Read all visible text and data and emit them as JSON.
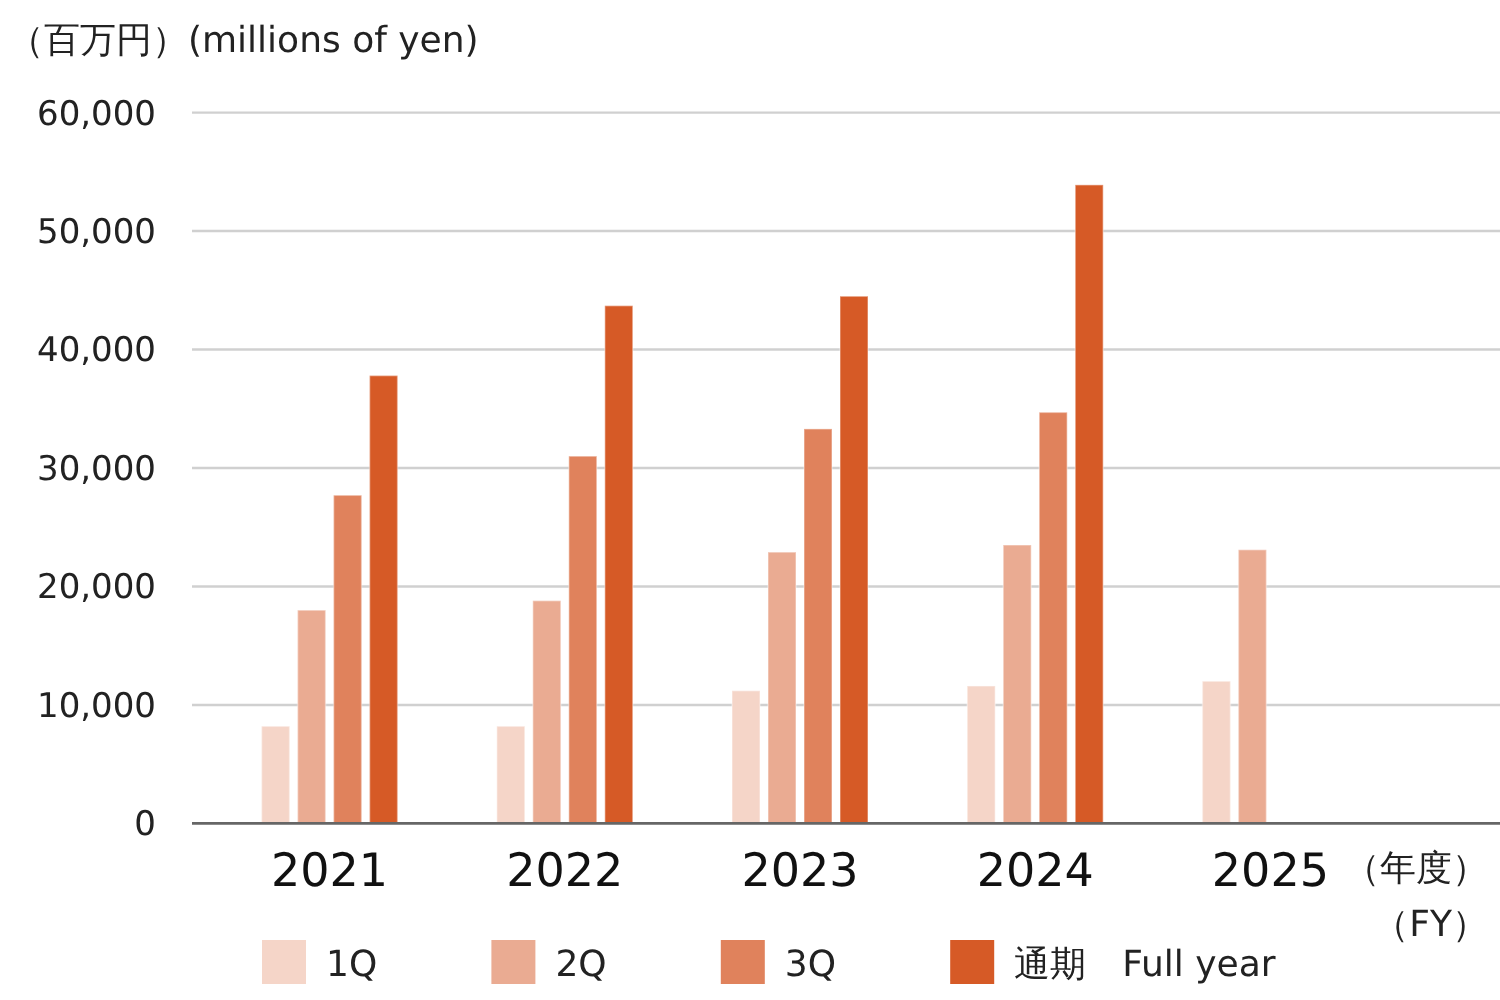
{
  "chart_data": {
    "type": "bar",
    "ylabel": "（百万円）(millions of yen)",
    "xlabel": "（年度）（FY）",
    "categories": [
      "2021",
      "2022",
      "2023",
      "2024",
      "2025"
    ],
    "series": [
      {
        "name": "1Q",
        "color": "#f5d5c8",
        "values": [
          8200,
          8200,
          11200,
          11600,
          12000
        ]
      },
      {
        "name": "2Q",
        "color": "#eaab92",
        "values": [
          18000,
          18800,
          22900,
          23500,
          23100
        ]
      },
      {
        "name": "3Q",
        "color": "#e0825c",
        "values": [
          27700,
          31000,
          33300,
          34700,
          null
        ]
      },
      {
        "name": "通期　Full year",
        "color": "#d65a26",
        "values": [
          37800,
          43700,
          44500,
          53900,
          null
        ]
      }
    ],
    "ylim": [
      0,
      60000
    ],
    "yticks": [
      0,
      {
        "value": 10000,
        "label": "10,000"
      },
      {
        "value": 20000,
        "label": "20,000"
      },
      {
        "value": 30000,
        "label": "30,000"
      },
      {
        "value": 40000,
        "label": "40,000"
      },
      {
        "value": 50000,
        "label": "50,000"
      },
      {
        "value": 60000,
        "label": "60,000"
      }
    ],
    "grid": "y",
    "legend": "bottom"
  }
}
